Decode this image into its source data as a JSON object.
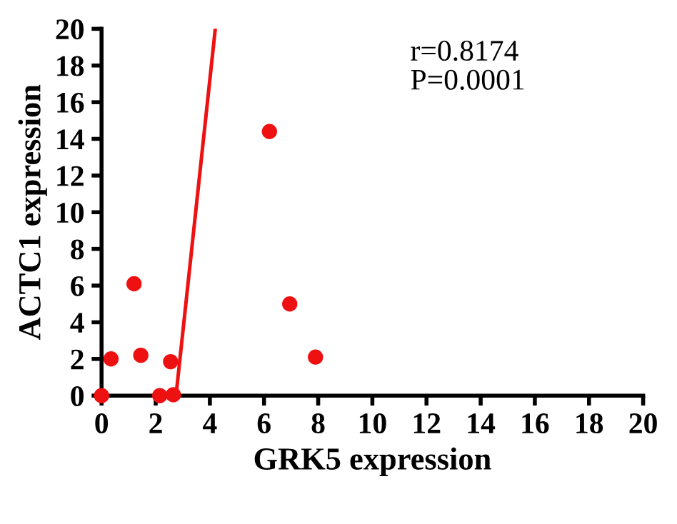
{
  "chart_data": {
    "type": "scatter",
    "xlabel": "GRK5 expression",
    "ylabel": "ACTC1 expression",
    "annotations": [
      "r=0.8174\nP=0.0001"
    ],
    "series": [
      {
        "color": "#ee1111",
        "marker": "circle",
        "x": [
          0,
          0.35,
          1.2,
          1.45,
          2.15,
          2.55,
          2.65,
          6.2,
          6.95,
          7.9
        ],
        "values": [
          0,
          2.0,
          6.1,
          2.2,
          0,
          1.85,
          0.05,
          14.4,
          5.0,
          2.1
        ]
      },
      {
        "type": "line",
        "color": "#ee1111",
        "x": [
          2.75,
          4.2
        ],
        "values": [
          0,
          20
        ]
      }
    ],
    "xlim": [
      0,
      20
    ],
    "ylim": [
      0,
      20
    ],
    "xticks": [
      0,
      2,
      4,
      6,
      8,
      10,
      12,
      14,
      16,
      18,
      20
    ],
    "yticks": [
      0,
      2,
      4,
      6,
      8,
      10,
      12,
      14,
      16,
      18,
      20
    ],
    "grid": false,
    "legend": false
  }
}
